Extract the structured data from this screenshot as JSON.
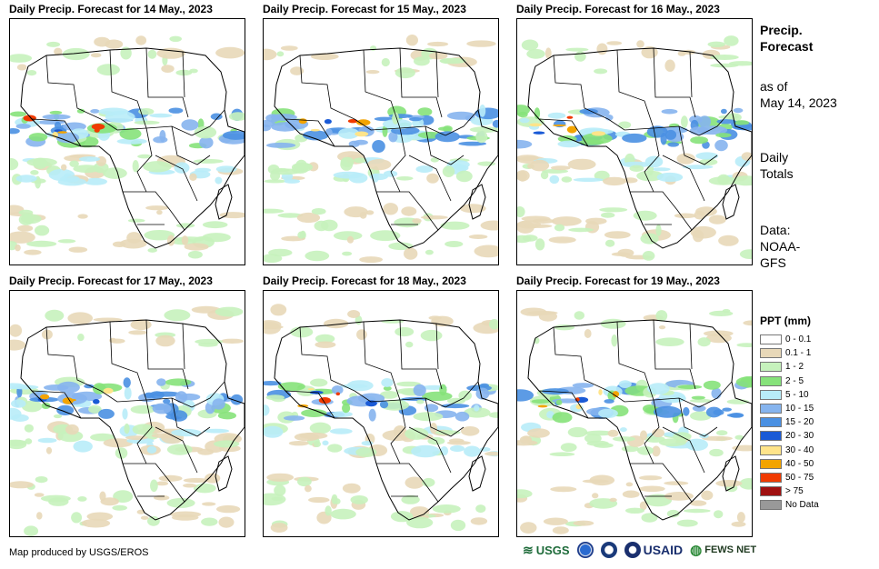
{
  "panels": [
    {
      "title": "Daily Precip. Forecast for 14 May., 2023"
    },
    {
      "title": "Daily Precip. Forecast for 15 May., 2023"
    },
    {
      "title": "Daily Precip. Forecast for 16 May., 2023"
    },
    {
      "title": "Daily Precip. Forecast for 17 May., 2023"
    },
    {
      "title": "Daily Precip. Forecast for 18 May., 2023"
    },
    {
      "title": "Daily Precip. Forecast for 19 May., 2023"
    }
  ],
  "side": {
    "heading_line1": "Precip.",
    "heading_line2": "Forecast",
    "asof_line1": "as of",
    "asof_line2": "May 14, 2023",
    "totals_line1": "Daily",
    "totals_line2": "Totals",
    "data_line1": "Data:",
    "data_line2": "NOAA-",
    "data_line3": "GFS"
  },
  "legend": {
    "title": "PPT (mm)",
    "items": [
      {
        "label": "0 - 0.1",
        "color": "#ffffff"
      },
      {
        "label": "0.1 - 1",
        "color": "#e8d8b8"
      },
      {
        "label": "1 - 2",
        "color": "#c6f2bc"
      },
      {
        "label": "2 - 5",
        "color": "#86e27a"
      },
      {
        "label": "5 - 10",
        "color": "#b8ecf8"
      },
      {
        "label": "10 - 15",
        "color": "#86b4ee"
      },
      {
        "label": "15 - 20",
        "color": "#4a90e2"
      },
      {
        "label": "20 - 30",
        "color": "#1a5ad6"
      },
      {
        "label": "30 - 40",
        "color": "#ffe48a"
      },
      {
        "label": "40 - 50",
        "color": "#f3a400"
      },
      {
        "label": "50 - 75",
        "color": "#f03a00"
      },
      {
        "label": "> 75",
        "color": "#a01010"
      },
      {
        "label": "No Data",
        "color": "#999999"
      }
    ]
  },
  "credit": "Map produced by USGS/EROS",
  "logos": {
    "usgs": "USGS",
    "usaid": "USAID",
    "fews": "FEWS NET"
  }
}
